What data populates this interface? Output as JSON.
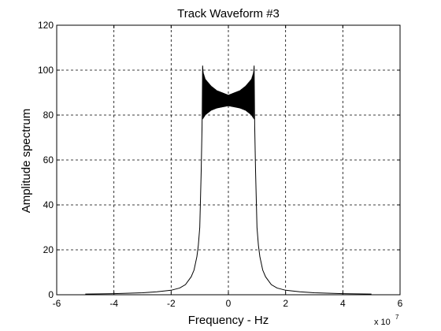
{
  "chart_data": {
    "type": "line",
    "title": "Track Waveform #3",
    "xlabel": "Frequency - Hz",
    "ylabel": "Amplitude spectrum",
    "x_multiplier": "x 10",
    "x_multiplier_exponent": "7",
    "xlim": [
      -6,
      6
    ],
    "ylim": [
      0,
      120
    ],
    "xticks": [
      -6,
      -4,
      -2,
      0,
      2,
      4,
      6
    ],
    "yticks": [
      0,
      20,
      40,
      60,
      80,
      100,
      120
    ],
    "xtick_labels": [
      "-6",
      "-4",
      "-2",
      "0",
      "2",
      "4",
      "6"
    ],
    "ytick_labels": [
      "0",
      "20",
      "40",
      "60",
      "80",
      "100",
      "120"
    ],
    "grid": true,
    "grid_style": "dashed",
    "series": [
      {
        "color": "#000000",
        "x": [
          -5.0,
          -4.0,
          -3.0,
          -2.5,
          -2.0,
          -1.7,
          -1.5,
          -1.3,
          -1.2,
          -1.1,
          -1.05,
          -1.0,
          -0.95,
          -0.92,
          -0.9,
          -0.85,
          -0.75,
          -0.6,
          -0.4,
          -0.2,
          0.0,
          0.2,
          0.4,
          0.6,
          0.75,
          0.85,
          0.9,
          0.92,
          0.95,
          1.0,
          1.05,
          1.1,
          1.2,
          1.3,
          1.5,
          1.7,
          2.0,
          2.5,
          3.0,
          4.0,
          5.0
        ],
        "y": [
          0.3,
          0.5,
          0.9,
          1.3,
          2.0,
          3.0,
          4.5,
          8.0,
          11.0,
          17.0,
          22.0,
          30.0,
          55.0,
          75.0,
          102.0,
          92.0,
          89.0,
          88.0,
          86.5,
          86.0,
          86.0,
          86.0,
          86.5,
          88.0,
          89.0,
          92.0,
          102.0,
          75.0,
          55.0,
          30.0,
          22.0,
          17.0,
          11.0,
          8.0,
          4.5,
          3.0,
          2.0,
          1.3,
          0.9,
          0.5,
          0.3
        ],
        "ripple_band": [
          {
            "x": [
              -0.9,
              -0.8,
              -0.6,
              -0.4,
              -0.2,
              0.0,
              0.2,
              0.4,
              0.6,
              0.8,
              0.9
            ],
            "upper": [
              100,
              96,
              93,
              91,
              90,
              89,
              90,
              91,
              93,
              96,
              100
            ],
            "lower": [
              78,
              80,
              82,
              83,
              83.5,
              84,
              83.5,
              83,
              82,
              80,
              78
            ]
          }
        ]
      }
    ]
  }
}
